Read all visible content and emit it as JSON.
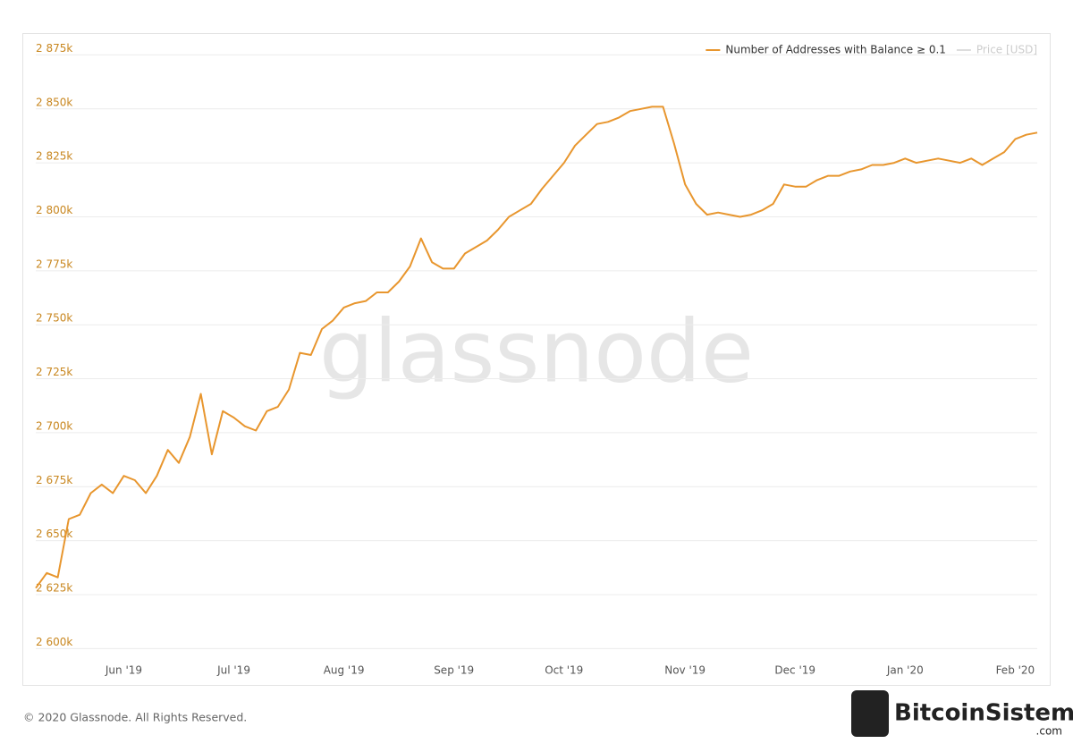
{
  "chart_data": {
    "type": "line",
    "watermark": "glassnode",
    "footer": "© 2020 Glassnode. All Rights Reserved.",
    "brand": "BitcoinSistemi",
    "brand_suffix": ".com",
    "categories": [
      null,
      null,
      null,
      null,
      null,
      null,
      null,
      null,
      "Jun '19",
      null,
      null,
      null,
      null,
      null,
      null,
      null,
      null,
      null,
      "Jul '19",
      null,
      null,
      null,
      null,
      null,
      null,
      null,
      null,
      null,
      "Aug '19",
      null,
      null,
      null,
      null,
      null,
      null,
      null,
      null,
      null,
      "Sep '19",
      null,
      null,
      null,
      null,
      null,
      null,
      null,
      null,
      null,
      "Oct '19",
      null,
      null,
      null,
      null,
      null,
      null,
      null,
      null,
      null,
      null,
      "Nov '19",
      null,
      null,
      null,
      null,
      null,
      null,
      null,
      null,
      null,
      "Dec '19",
      null,
      null,
      null,
      null,
      null,
      null,
      null,
      null,
      null,
      "Jan '20",
      null,
      null,
      null,
      null,
      null,
      null,
      null,
      null,
      null,
      "Feb '20",
      null,
      null
    ],
    "series": [
      {
        "name": "Number of Addresses with Balance ≥ 0.1",
        "color": "#e8962e",
        "values": [
          2628000,
          2635000,
          2633000,
          2660000,
          2662000,
          2672000,
          2676000,
          2672000,
          2680000,
          2678000,
          2672000,
          2680000,
          2692000,
          2686000,
          2698000,
          2718000,
          2690000,
          2710000,
          2707000,
          2703000,
          2701000,
          2710000,
          2712000,
          2720000,
          2737000,
          2736000,
          2748000,
          2752000,
          2758000,
          2760000,
          2761000,
          2765000,
          2765000,
          2770000,
          2777000,
          2790000,
          2779000,
          2776000,
          2776000,
          2783000,
          2786000,
          2789000,
          2794000,
          2800000,
          2803000,
          2806000,
          2813000,
          2819000,
          2825000,
          2833000,
          2838000,
          2843000,
          2844000,
          2846000,
          2849000,
          2850000,
          2851000,
          2851000,
          2834000,
          2815000,
          2806000,
          2801000,
          2802000,
          2801000,
          2800000,
          2801000,
          2803000,
          2806000,
          2815000,
          2814000,
          2814000,
          2817000,
          2819000,
          2819000,
          2821000,
          2822000,
          2824000,
          2824000,
          2825000,
          2827000,
          2825000,
          2826000,
          2827000,
          2826000,
          2825000,
          2827000,
          2824000,
          2827000,
          2830000,
          2836000,
          2838000,
          2839000
        ]
      },
      {
        "name": "Price [USD]",
        "color": "#dddddd",
        "visible": false
      }
    ],
    "ylim": [
      2596000,
      2876000
    ],
    "yticks": [
      {
        "value": 2600000,
        "label": "2 600k"
      },
      {
        "value": 2625000,
        "label": "2 625k"
      },
      {
        "value": 2650000,
        "label": "2 650k"
      },
      {
        "value": 2675000,
        "label": "2 675k"
      },
      {
        "value": 2700000,
        "label": "2 700k"
      },
      {
        "value": 2725000,
        "label": "2 725k"
      },
      {
        "value": 2750000,
        "label": "2 750k"
      },
      {
        "value": 2775000,
        "label": "2 775k"
      },
      {
        "value": 2800000,
        "label": "2 800k"
      },
      {
        "value": 2825000,
        "label": "2 825k"
      },
      {
        "value": 2850000,
        "label": "2 850k"
      },
      {
        "value": 2875000,
        "label": "2 875k"
      }
    ],
    "grid": true,
    "tick_color": "#c8861e"
  }
}
